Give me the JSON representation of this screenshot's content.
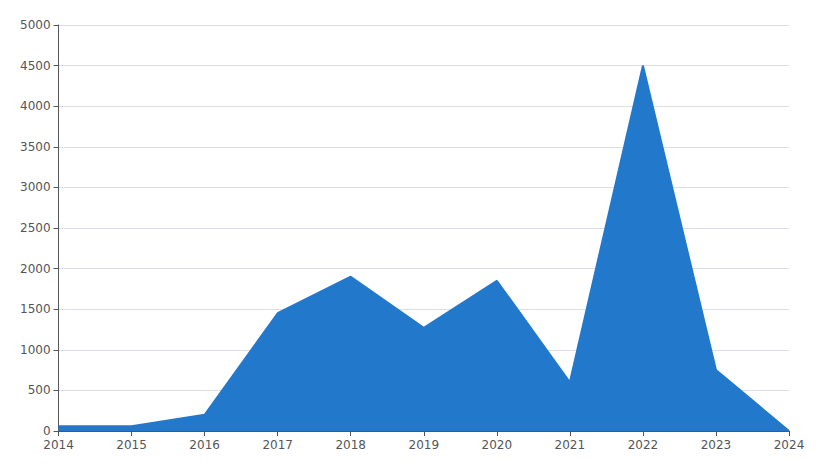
{
  "chart_data": {
    "type": "area",
    "x": [
      2014,
      2015,
      2016,
      2017,
      2018,
      2019,
      2020,
      2021,
      2022,
      2023,
      2024
    ],
    "values": [
      60,
      60,
      200,
      1450,
      1900,
      1270,
      1850,
      600,
      4500,
      750,
      0
    ],
    "color": "#2279CC",
    "xlim": [
      2014,
      2024
    ],
    "xticks": [
      2014,
      2015,
      2016,
      2017,
      2018,
      2019,
      2020,
      2021,
      2022,
      2023,
      2024
    ],
    "ylim": [
      0,
      5000
    ],
    "yticks": [
      0,
      500,
      1000,
      1500,
      2000,
      2500,
      3000,
      3500,
      4000,
      4500,
      5000
    ],
    "grid": "y"
  }
}
